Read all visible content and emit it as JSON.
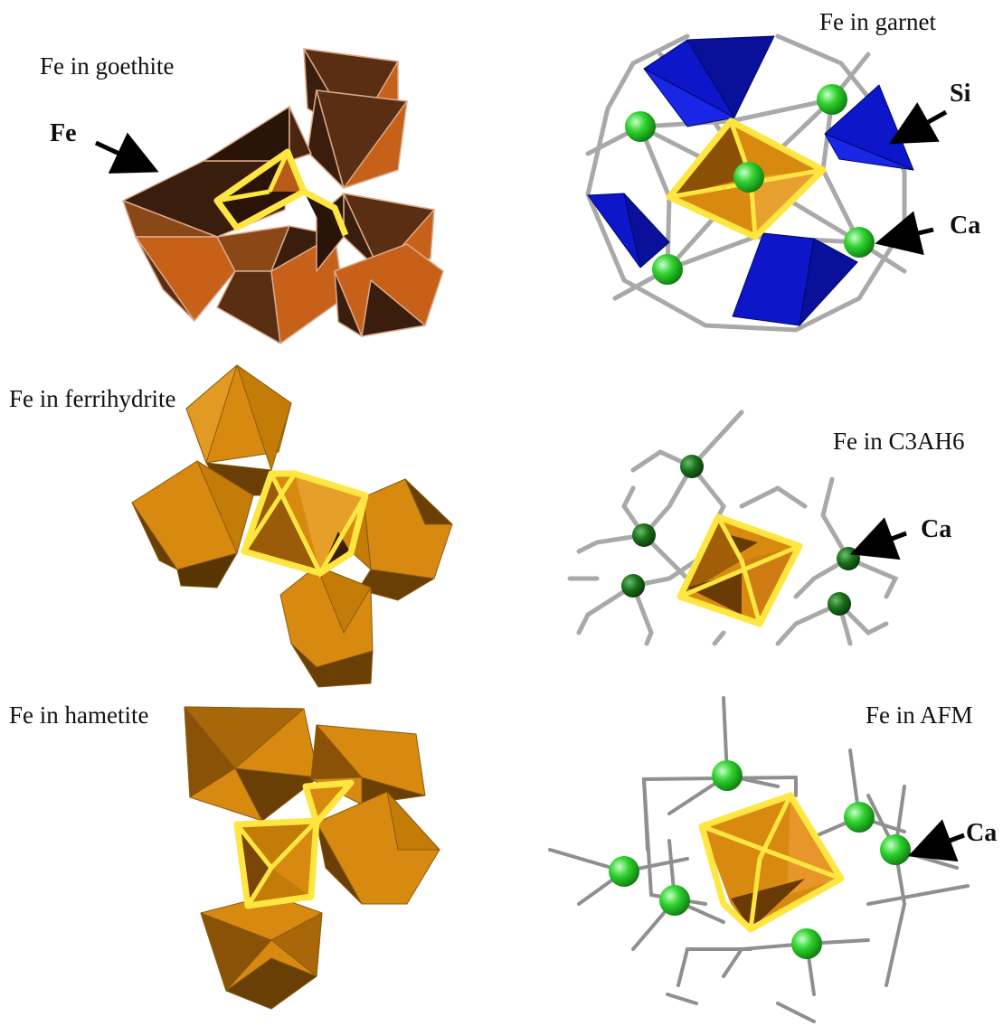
{
  "panels": {
    "goethite": {
      "title": "Fe in goethite",
      "pointer_label": "Fe"
    },
    "garnet": {
      "title": "Fe in garnet",
      "si_label": "Si",
      "ca_label": "Ca"
    },
    "ferrihydrite": {
      "title": "Fe in ferrihydrite"
    },
    "c3ah6": {
      "title": "Fe in C3AH6",
      "ca_label": "Ca"
    },
    "hametite": {
      "title": "Fe in hametite"
    },
    "afm": {
      "title": "Fe in AFM",
      "ca_label": "Ca"
    }
  },
  "colors": {
    "goethite_dark": "#3a1d0c",
    "goethite_light": "#c7611a",
    "ferrihydrite_orange": "#d88a10",
    "ferrihydrite_dark": "#6a3f05",
    "highlight_yellow": "#ffe640",
    "silicate_blue": "#0d16c8",
    "calcium_green": "#2fd22f",
    "calcium_dark_green": "#147214",
    "bond_gray": "#a9a9a9"
  }
}
